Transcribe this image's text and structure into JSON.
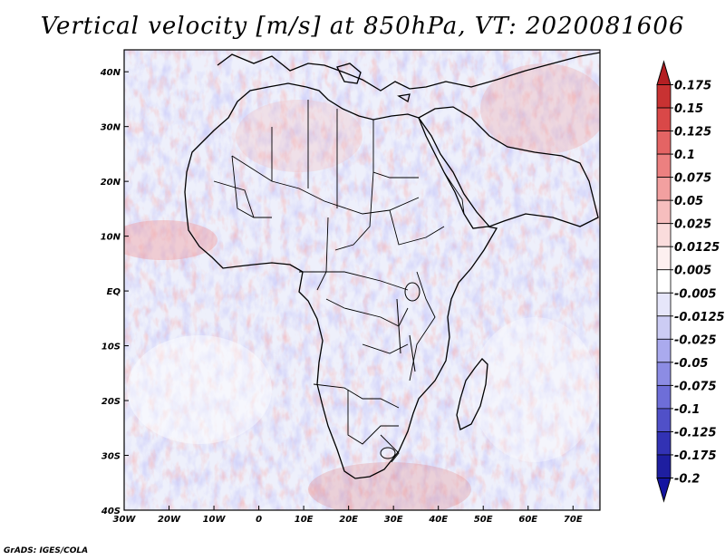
{
  "title": "Vertical velocity [m/s] at 850hPa, VT: 2020081606",
  "credit": "GrADS: IGES/COLA",
  "map": {
    "variable": "Vertical velocity",
    "units": "m/s",
    "level": "850hPa",
    "valid_time": "2020081606",
    "region": "Africa",
    "lon_labels": [
      "30W",
      "20W",
      "10W",
      "0",
      "10E",
      "20E",
      "30E",
      "40E",
      "50E",
      "60E",
      "70E"
    ],
    "lon_values": [
      -30,
      -20,
      -10,
      0,
      10,
      20,
      30,
      40,
      50,
      60,
      70
    ],
    "lat_labels": [
      "40N",
      "30N",
      "20N",
      "10N",
      "EQ",
      "10S",
      "20S",
      "30S",
      "40S"
    ],
    "lat_values": [
      40,
      30,
      20,
      10,
      0,
      -10,
      -20,
      -30,
      -40
    ],
    "lon_range": [
      -30,
      76
    ],
    "lat_range": [
      -40,
      44
    ]
  },
  "colorbar": {
    "labels": [
      "0.175",
      "0.15",
      "0.125",
      "0.1",
      "0.075",
      "0.05",
      "0.025",
      "0.0125",
      "0.005",
      "-0.005",
      "-0.0125",
      "-0.025",
      "-0.05",
      "-0.075",
      "-0.1",
      "-0.125",
      "-0.175",
      "-0.2"
    ],
    "colors": [
      "#b41f23",
      "#c83232",
      "#d94848",
      "#e46464",
      "#ec8080",
      "#f2a0a0",
      "#f6bebe",
      "#fadcdc",
      "#fdf0f0",
      "#ffffff",
      "#e6e6fa",
      "#ccccf4",
      "#aaaaee",
      "#8c8ce4",
      "#6e6ed8",
      "#5050c8",
      "#3232b4",
      "#1e1ea0",
      "#1414a0"
    ]
  }
}
